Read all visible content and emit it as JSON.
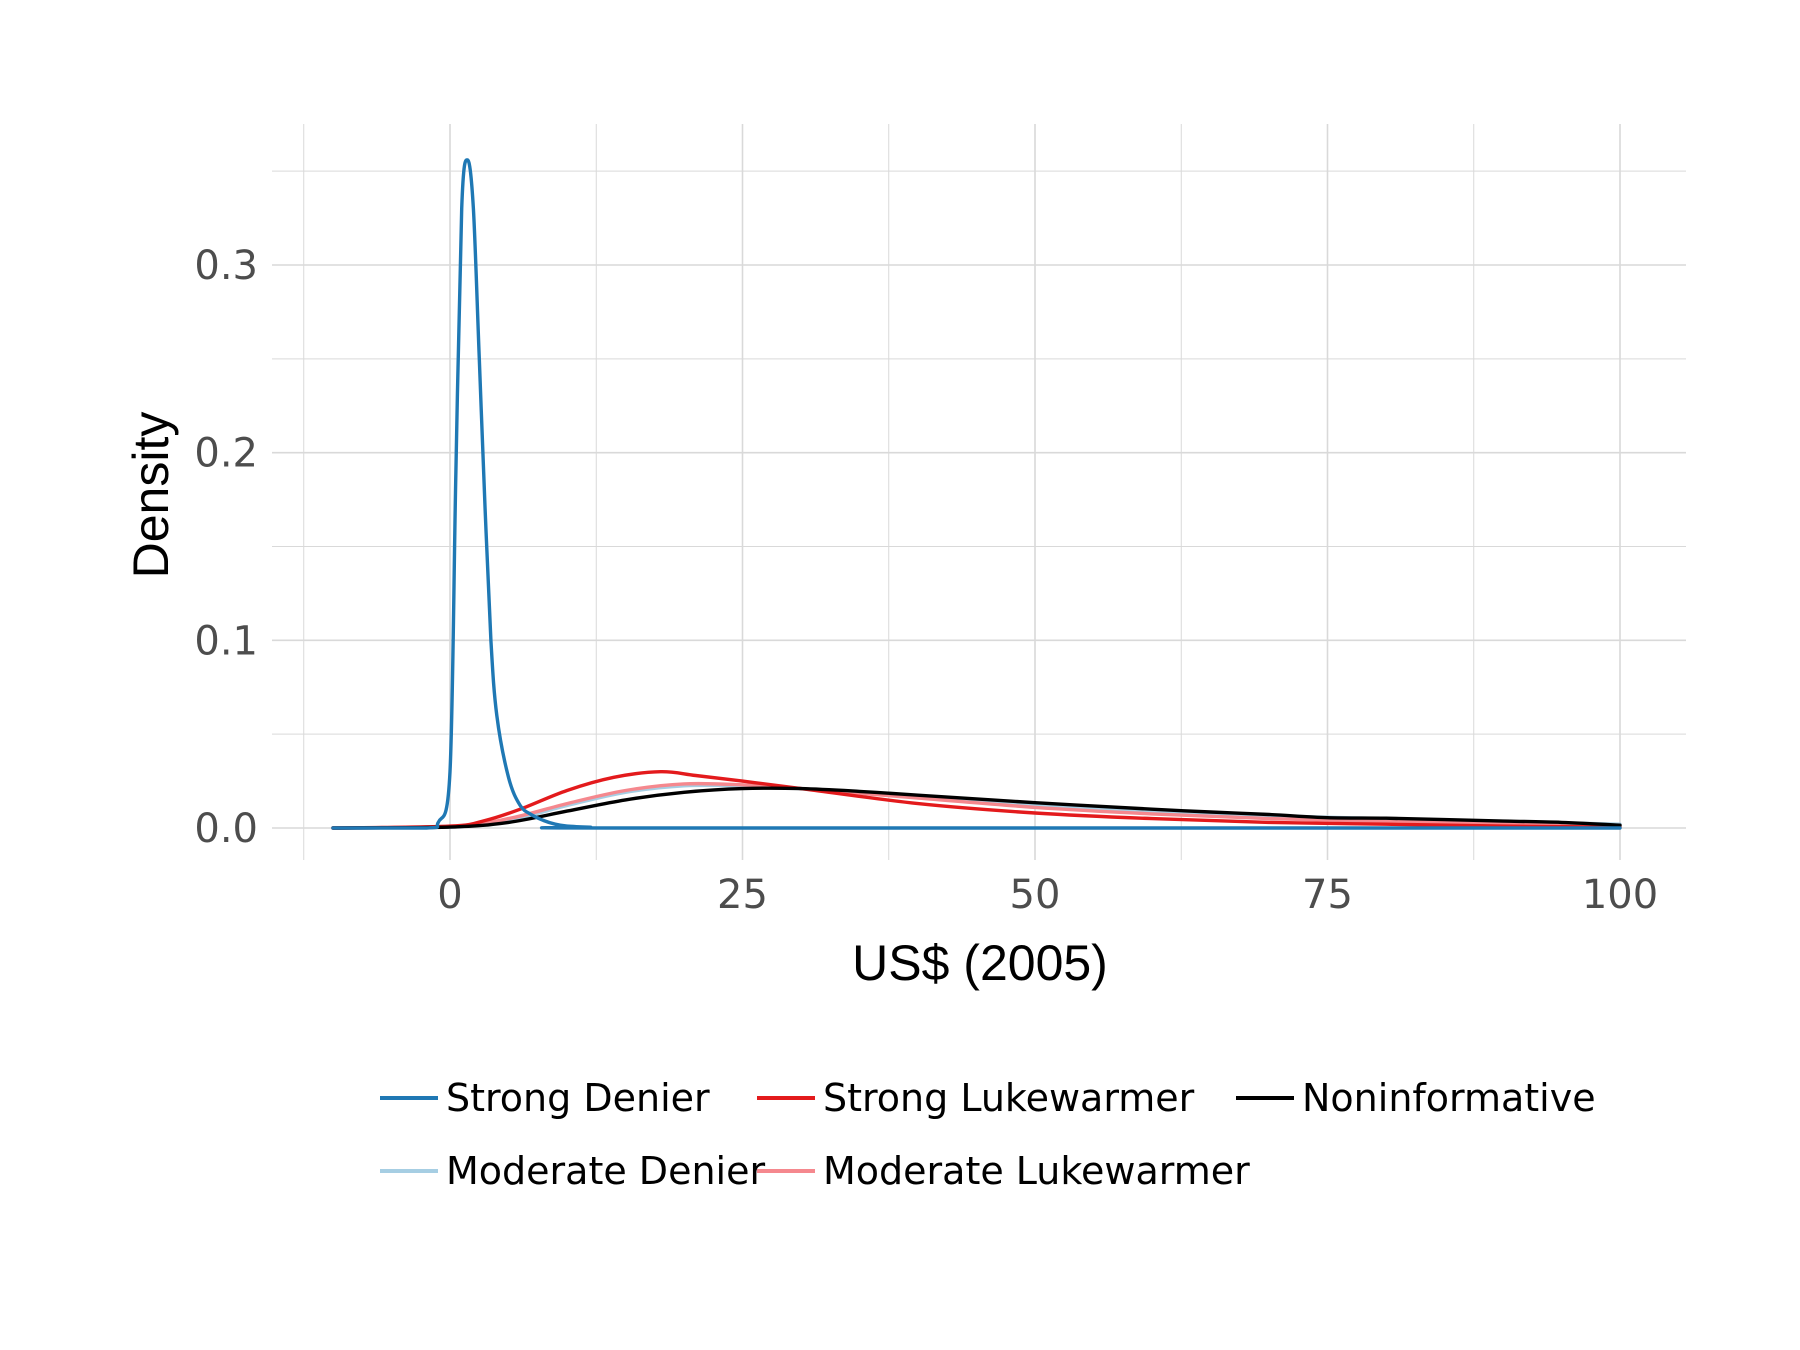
{
  "chart_data": {
    "type": "line",
    "title": "",
    "xlabel": "US$ (2005)",
    "ylabel": "Density",
    "xlim": [
      -10,
      100
    ],
    "ylim": [
      0,
      0.36
    ],
    "x_ticks": [
      0,
      25,
      50,
      75,
      100
    ],
    "x_tick_labels": [
      "0",
      "25",
      "50",
      "75",
      "100"
    ],
    "y_ticks": [
      0.0,
      0.1,
      0.2,
      0.3
    ],
    "y_tick_labels": [
      "0.0",
      "0.1",
      "0.2",
      "0.3"
    ],
    "grid": true,
    "legend_position": "bottom",
    "series": [
      {
        "name": "Strong Denier",
        "color": "#1f78b4",
        "x": [
          -10,
          -2,
          -1,
          0,
          0.5,
          1,
          1.5,
          2,
          2.5,
          3,
          3.5,
          4,
          5,
          6,
          7,
          8,
          9,
          10,
          12,
          15,
          100
        ],
        "y": [
          0,
          0,
          0.003,
          0.03,
          0.19,
          0.33,
          0.356,
          0.33,
          0.25,
          0.17,
          0.1,
          0.06,
          0.027,
          0.012,
          0.007,
          0.004,
          0.002,
          0.001,
          0.0004,
          0,
          0
        ]
      },
      {
        "name": "Moderate Denier",
        "color": "#a6cee3",
        "x": [
          -10,
          0,
          5,
          10,
          15,
          20,
          25,
          30,
          40,
          50,
          60,
          70,
          80,
          90,
          100
        ],
        "y": [
          0,
          0.0005,
          0.004,
          0.012,
          0.019,
          0.0225,
          0.0225,
          0.021,
          0.017,
          0.0125,
          0.009,
          0.0065,
          0.005,
          0.0035,
          0.002
        ]
      },
      {
        "name": "Strong Lukewarmer",
        "color": "#e31a1c",
        "x": [
          -10,
          0,
          3,
          6,
          10,
          14,
          18,
          21,
          25,
          30,
          40,
          50,
          60,
          70,
          80,
          90,
          100
        ],
        "y": [
          0,
          0.001,
          0.004,
          0.01,
          0.02,
          0.027,
          0.03,
          0.028,
          0.025,
          0.021,
          0.013,
          0.008,
          0.005,
          0.003,
          0.002,
          0.001,
          0.0005
        ]
      },
      {
        "name": "Moderate Lukewarmer",
        "color": "#f5888e",
        "x": [
          -10,
          0,
          5,
          10,
          15,
          20,
          25,
          30,
          40,
          50,
          60,
          70,
          80,
          90,
          100
        ],
        "y": [
          0,
          0.0007,
          0.005,
          0.013,
          0.02,
          0.0235,
          0.023,
          0.021,
          0.016,
          0.011,
          0.0075,
          0.005,
          0.0035,
          0.0022,
          0.0012
        ]
      },
      {
        "name": "Noninformative",
        "color": "#000000",
        "x": [
          -10,
          0,
          5,
          10,
          15,
          20,
          25,
          30,
          35,
          40,
          50,
          60,
          65,
          70,
          75,
          80,
          85,
          90,
          95,
          100
        ],
        "y": [
          0,
          0.0005,
          0.003,
          0.009,
          0.015,
          0.019,
          0.021,
          0.021,
          0.0195,
          0.0175,
          0.0135,
          0.01,
          0.0085,
          0.0072,
          0.0055,
          0.0052,
          0.0045,
          0.0037,
          0.003,
          0.0015
        ]
      }
    ]
  }
}
